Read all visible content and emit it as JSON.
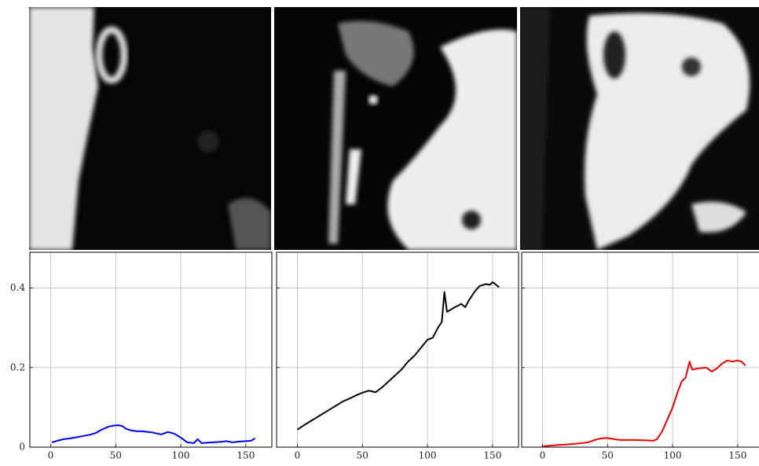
{
  "chart_data": [
    {
      "type": "line",
      "xlim": [
        -16,
        170
      ],
      "ylim": [
        0,
        0.49
      ],
      "xticks": [
        0,
        50,
        100,
        150
      ],
      "yticks": [
        0,
        0.2,
        0.4
      ],
      "grid": true,
      "x": [
        1,
        5,
        10,
        15,
        20,
        25,
        30,
        35,
        38,
        42,
        45,
        48,
        52,
        55,
        58,
        62,
        66,
        70,
        75,
        78,
        82,
        85,
        90,
        95,
        100,
        105,
        110,
        113,
        116,
        120,
        125,
        130,
        135,
        140,
        145,
        150,
        154,
        157
      ],
      "series": [
        {
          "color": "#0000e6",
          "values": [
            0.012,
            0.016,
            0.02,
            0.022,
            0.025,
            0.028,
            0.031,
            0.036,
            0.042,
            0.048,
            0.052,
            0.054,
            0.055,
            0.053,
            0.046,
            0.042,
            0.04,
            0.04,
            0.038,
            0.037,
            0.034,
            0.032,
            0.038,
            0.034,
            0.024,
            0.012,
            0.01,
            0.02,
            0.01,
            0.011,
            0.012,
            0.013,
            0.015,
            0.012,
            0.014,
            0.015,
            0.016,
            0.022
          ]
        }
      ]
    },
    {
      "type": "line",
      "xlim": [
        -16,
        170
      ],
      "ylim": [
        0,
        0.49
      ],
      "xticks": [
        0,
        50,
        100,
        150
      ],
      "yticks": [
        0,
        0.2,
        0.4
      ],
      "grid": true,
      "x": [
        0,
        5,
        10,
        15,
        20,
        25,
        30,
        35,
        40,
        45,
        50,
        55,
        60,
        65,
        70,
        75,
        80,
        85,
        90,
        95,
        100,
        104,
        108,
        111,
        113,
        115,
        120,
        126,
        129,
        132,
        136,
        140,
        145,
        148,
        150,
        152,
        155
      ],
      "series": [
        {
          "color": "#000000",
          "values": [
            0.044,
            0.055,
            0.065,
            0.075,
            0.085,
            0.095,
            0.105,
            0.115,
            0.122,
            0.13,
            0.137,
            0.142,
            0.138,
            0.15,
            0.165,
            0.18,
            0.195,
            0.215,
            0.23,
            0.25,
            0.27,
            0.275,
            0.3,
            0.315,
            0.39,
            0.34,
            0.35,
            0.36,
            0.352,
            0.37,
            0.39,
            0.405,
            0.41,
            0.408,
            0.415,
            0.41,
            0.402
          ]
        }
      ]
    },
    {
      "type": "line",
      "xlim": [
        -16,
        170
      ],
      "ylim": [
        0,
        0.49
      ],
      "xticks": [
        0,
        50,
        100,
        150
      ],
      "yticks": [
        0,
        0.2,
        0.4
      ],
      "grid": true,
      "x": [
        0,
        10,
        20,
        30,
        35,
        40,
        45,
        50,
        55,
        60,
        70,
        80,
        85,
        88,
        92,
        96,
        100,
        104,
        107,
        110,
        113,
        115,
        120,
        126,
        130,
        134,
        138,
        142,
        146,
        150,
        153,
        156
      ],
      "series": [
        {
          "color": "#ee0000",
          "values": [
            0.002,
            0.005,
            0.007,
            0.01,
            0.012,
            0.018,
            0.022,
            0.023,
            0.02,
            0.018,
            0.018,
            0.017,
            0.016,
            0.02,
            0.04,
            0.07,
            0.1,
            0.14,
            0.165,
            0.175,
            0.215,
            0.195,
            0.198,
            0.2,
            0.19,
            0.198,
            0.21,
            0.218,
            0.215,
            0.218,
            0.215,
            0.205
          ]
        }
      ]
    }
  ]
}
